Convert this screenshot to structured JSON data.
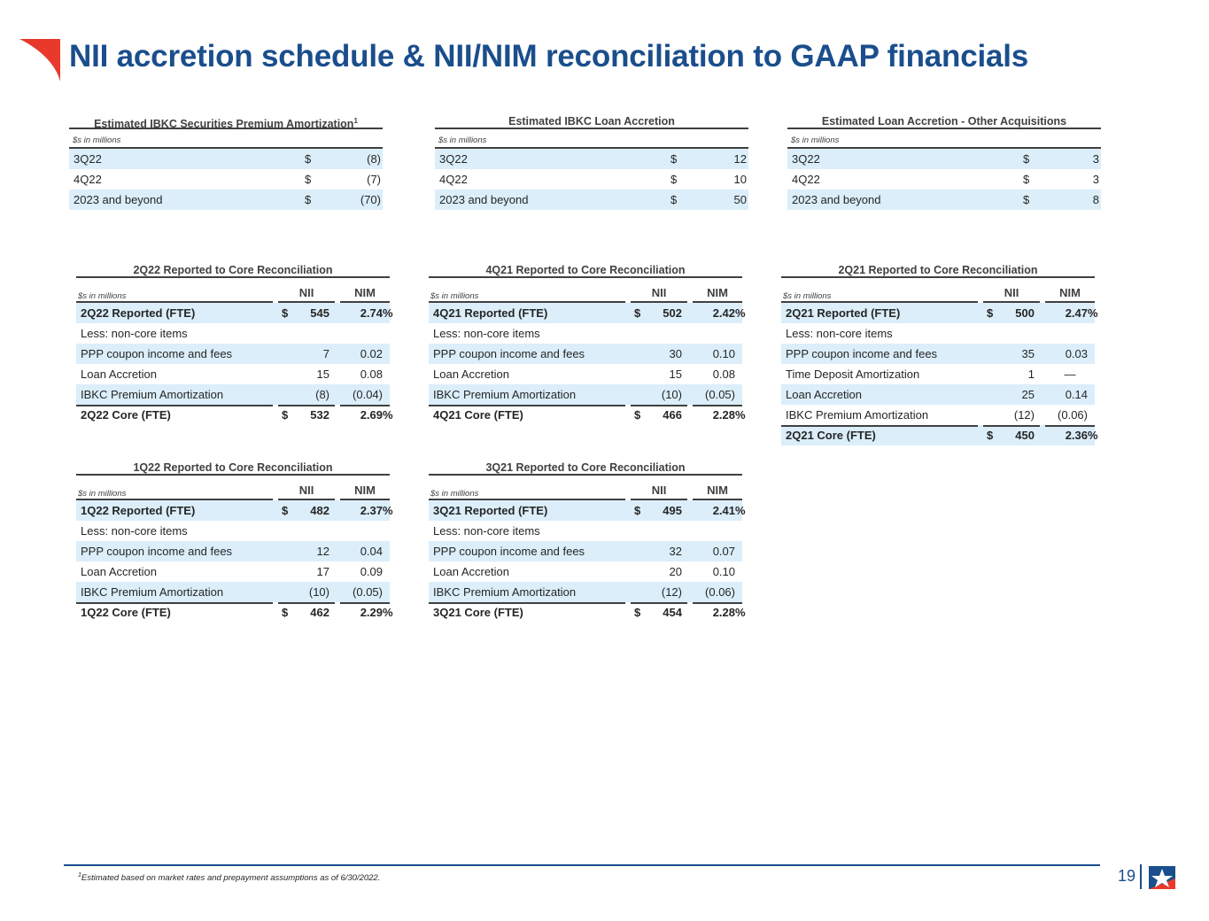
{
  "page": {
    "title": "NII accretion schedule & NII/NIM reconciliation to GAAP financials",
    "page_number": "19",
    "footnote_marker": "1",
    "footnote": "Estimated based on market rates and prepayment assumptions as of 6/30/2022.",
    "colors": {
      "title": "#1a4e8c",
      "shade": "#dbeefa",
      "accent_red": "#e8392b"
    }
  },
  "accretion_tables": [
    {
      "title": "Estimated IBKC Securities Premium Amortization",
      "title_sup": "1",
      "units": "$s in millions",
      "rows": [
        {
          "label": "3Q22",
          "dollar": "$",
          "value": "(8)"
        },
        {
          "label": "4Q22",
          "dollar": "$",
          "value": "(7)"
        },
        {
          "label": "2023 and beyond",
          "dollar": "$",
          "value": "(70)"
        }
      ]
    },
    {
      "title": "Estimated IBKC Loan Accretion",
      "title_sup": "",
      "units": "$s in millions",
      "rows": [
        {
          "label": "3Q22",
          "dollar": "$",
          "value": "12"
        },
        {
          "label": "4Q22",
          "dollar": "$",
          "value": "10"
        },
        {
          "label": "2023 and beyond",
          "dollar": "$",
          "value": "50"
        }
      ]
    },
    {
      "title": "Estimated Loan Accretion - Other Acquisitions",
      "title_sup": "",
      "units": "$s in millions",
      "rows": [
        {
          "label": "3Q22",
          "dollar": "$",
          "value": "3"
        },
        {
          "label": "4Q22",
          "dollar": "$",
          "value": "3"
        },
        {
          "label": "2023 and beyond",
          "dollar": "$",
          "value": "8"
        }
      ]
    }
  ],
  "reconciliations": [
    {
      "title": "2Q22 Reported to Core Reconciliation",
      "units": "$s in millions",
      "nii_header": "NII",
      "nim_header": "NIM",
      "rows": [
        {
          "label": "2Q22 Reported (FTE)",
          "dollar": "$",
          "nii": "545",
          "nim": "2.74",
          "pct": "%",
          "bold": true
        },
        {
          "label": "Less: non-core items",
          "dollar": "",
          "nii": "",
          "nim": "",
          "pct": ""
        },
        {
          "label": "PPP coupon income and fees",
          "dollar": "",
          "nii": "7",
          "nim": "0.02",
          "pct": ""
        },
        {
          "label": "Loan Accretion",
          "dollar": "",
          "nii": "15",
          "nim": "0.08",
          "pct": ""
        },
        {
          "label": "IBKC Premium Amortization",
          "dollar": "",
          "nii": "(8)",
          "nim": "(0.04)",
          "pct": ""
        },
        {
          "label": "2Q22 Core (FTE)",
          "dollar": "$",
          "nii": "532",
          "nim": "2.69",
          "pct": "%",
          "bold": true,
          "total": true
        }
      ]
    },
    {
      "title": "4Q21 Reported to Core Reconciliation",
      "units": "$s in millions",
      "nii_header": "NII",
      "nim_header": "NIM",
      "rows": [
        {
          "label": "4Q21 Reported (FTE)",
          "dollar": "$",
          "nii": "502",
          "nim": "2.42",
          "pct": "%",
          "bold": true
        },
        {
          "label": "Less: non-core items",
          "dollar": "",
          "nii": "",
          "nim": "",
          "pct": ""
        },
        {
          "label": "PPP coupon income and fees",
          "dollar": "",
          "nii": "30",
          "nim": "0.10",
          "pct": ""
        },
        {
          "label": "Loan Accretion",
          "dollar": "",
          "nii": "15",
          "nim": "0.08",
          "pct": ""
        },
        {
          "label": "IBKC Premium Amortization",
          "dollar": "",
          "nii": "(10)",
          "nim": "(0.05)",
          "pct": ""
        },
        {
          "label": "4Q21 Core (FTE)",
          "dollar": "$",
          "nii": "466",
          "nim": "2.28",
          "pct": "%",
          "bold": true,
          "total": true
        }
      ]
    },
    {
      "title": "2Q21 Reported to Core Reconciliation",
      "units": "$s in millions",
      "nii_header": "NII",
      "nim_header": "NIM",
      "rows": [
        {
          "label": "2Q21 Reported (FTE)",
          "dollar": "$",
          "nii": "500",
          "nim": "2.47",
          "pct": "%",
          "bold": true
        },
        {
          "label": "Less: non-core items",
          "dollar": "",
          "nii": "",
          "nim": "",
          "pct": ""
        },
        {
          "label": "PPP coupon income and fees",
          "dollar": "",
          "nii": "35",
          "nim": "0.03",
          "pct": ""
        },
        {
          "label": "Time Deposit Amortization",
          "dollar": "",
          "nii": "1",
          "nim": "—",
          "pct": ""
        },
        {
          "label": "Loan Accretion",
          "dollar": "",
          "nii": "25",
          "nim": "0.14",
          "pct": ""
        },
        {
          "label": "IBKC Premium Amortization",
          "dollar": "",
          "nii": "(12)",
          "nim": "(0.06)",
          "pct": ""
        },
        {
          "label": "2Q21 Core (FTE)",
          "dollar": "$",
          "nii": "450",
          "nim": "2.36",
          "pct": "%",
          "bold": true,
          "total": true
        }
      ]
    },
    {
      "title": "1Q22 Reported to Core Reconciliation",
      "units": "$s in millions",
      "nii_header": "NII",
      "nim_header": "NIM",
      "rows": [
        {
          "label": "1Q22 Reported (FTE)",
          "dollar": "$",
          "nii": "482",
          "nim": "2.37",
          "pct": "%",
          "bold": true
        },
        {
          "label": "Less: non-core items",
          "dollar": "",
          "nii": "",
          "nim": "",
          "pct": ""
        },
        {
          "label": "PPP coupon income and fees",
          "dollar": "",
          "nii": "12",
          "nim": "0.04",
          "pct": ""
        },
        {
          "label": "Loan Accretion",
          "dollar": "",
          "nii": "17",
          "nim": "0.09",
          "pct": ""
        },
        {
          "label": "IBKC Premium Amortization",
          "dollar": "",
          "nii": "(10)",
          "nim": "(0.05)",
          "pct": ""
        },
        {
          "label": "1Q22 Core (FTE)",
          "dollar": "$",
          "nii": "462",
          "nim": "2.29",
          "pct": "%",
          "bold": true,
          "total": true
        }
      ]
    },
    {
      "title": "3Q21 Reported to Core Reconciliation",
      "units": "$s in millions",
      "nii_header": "NII",
      "nim_header": "NIM",
      "rows": [
        {
          "label": "3Q21 Reported (FTE)",
          "dollar": "$",
          "nii": "495",
          "nim": "2.41",
          "pct": "%",
          "bold": true
        },
        {
          "label": "Less: non-core items",
          "dollar": "",
          "nii": "",
          "nim": "",
          "pct": ""
        },
        {
          "label": "PPP coupon income and fees",
          "dollar": "",
          "nii": "32",
          "nim": "0.07",
          "pct": ""
        },
        {
          "label": "Loan Accretion",
          "dollar": "",
          "nii": "20",
          "nim": "0.10",
          "pct": ""
        },
        {
          "label": "IBKC Premium Amortization",
          "dollar": "",
          "nii": "(12)",
          "nim": "(0.06)",
          "pct": ""
        },
        {
          "label": "3Q21 Core (FTE)",
          "dollar": "$",
          "nii": "454",
          "nim": "2.28",
          "pct": "%",
          "bold": true,
          "total": true
        }
      ]
    }
  ]
}
